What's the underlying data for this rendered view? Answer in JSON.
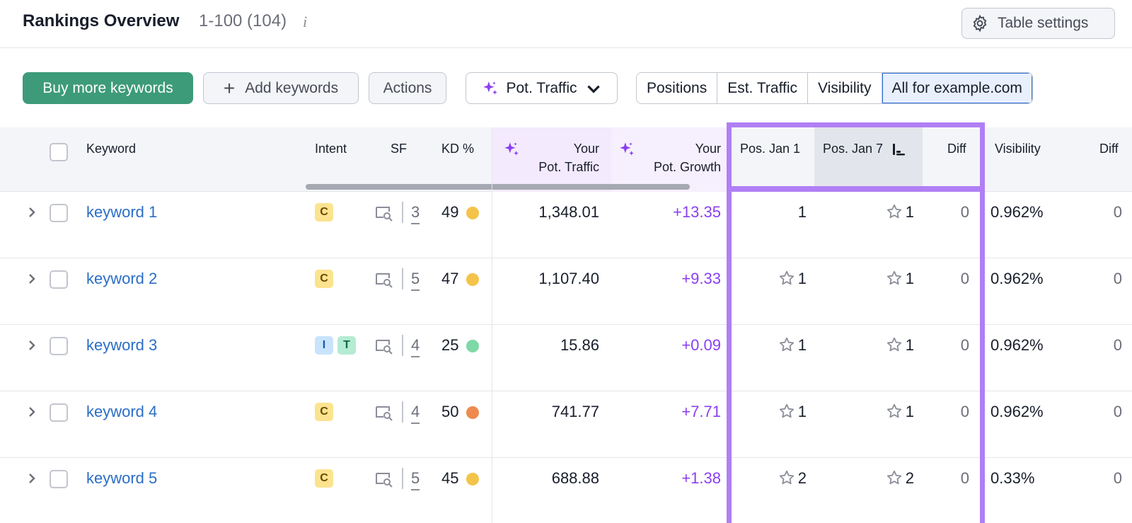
{
  "header": {
    "title": "Rankings Overview",
    "range": "1-100 (104)",
    "info_glyph": "i",
    "table_settings_label": "Table settings"
  },
  "toolbar": {
    "buy_label": "Buy more keywords",
    "add_label": "Add keywords",
    "actions_label": "Actions",
    "pot_traffic_label": "Pot. Traffic",
    "segments": [
      "Positions",
      "Est. Traffic",
      "Visibility",
      "All for example.com"
    ],
    "active_segment": "All for example.com"
  },
  "columns": {
    "keyword": "Keyword",
    "intent": "Intent",
    "sf": "SF",
    "kd": "KD %",
    "pot_traffic_line1": "Your",
    "pot_traffic_line2": "Pot. Traffic",
    "pot_growth_line1": "Your",
    "pot_growth_line2": "Pot. Growth",
    "pos_jan1": "Pos. Jan 1",
    "pos_jan7": "Pos. Jan 7",
    "diff": "Diff",
    "visibility": "Visibility",
    "diff2": "Diff"
  },
  "rows": [
    {
      "keyword": "keyword 1",
      "intents": [
        "C"
      ],
      "sf": "3",
      "kd": "49",
      "kd_color": "#f4c34a",
      "pot_traffic": "1,348.01",
      "pot_growth": "+13.35",
      "pos1": "1",
      "pos1_star": false,
      "pos7": "1",
      "pos7_star": true,
      "diff": "0",
      "visibility": "0.962%",
      "diff2": "0"
    },
    {
      "keyword": "keyword 2",
      "intents": [
        "C"
      ],
      "sf": "5",
      "kd": "47",
      "kd_color": "#f4c34a",
      "pot_traffic": "1,107.40",
      "pot_growth": "+9.33",
      "pos1": "1",
      "pos1_star": true,
      "pos7": "1",
      "pos7_star": true,
      "diff": "0",
      "visibility": "0.962%",
      "diff2": "0"
    },
    {
      "keyword": "keyword 3",
      "intents": [
        "I",
        "T"
      ],
      "sf": "4",
      "kd": "25",
      "kd_color": "#7ed9a6",
      "pot_traffic": "15.86",
      "pot_growth": "+0.09",
      "pos1": "1",
      "pos1_star": true,
      "pos7": "1",
      "pos7_star": true,
      "diff": "0",
      "visibility": "0.962%",
      "diff2": "0"
    },
    {
      "keyword": "keyword 4",
      "intents": [
        "C"
      ],
      "sf": "4",
      "kd": "50",
      "kd_color": "#ee8a4e",
      "pot_traffic": "741.77",
      "pot_growth": "+7.71",
      "pos1": "1",
      "pos1_star": true,
      "pos7": "1",
      "pos7_star": true,
      "diff": "0",
      "visibility": "0.962%",
      "diff2": "0"
    },
    {
      "keyword": "keyword 5",
      "intents": [
        "C"
      ],
      "sf": "5",
      "kd": "45",
      "kd_color": "#f4c34a",
      "pot_traffic": "688.88",
      "pot_growth": "+1.38",
      "pos1": "2",
      "pos1_star": true,
      "pos7": "2",
      "pos7_star": true,
      "diff": "0",
      "visibility": "0.33%",
      "diff2": "0"
    }
  ],
  "colors": {
    "accent_green": "#3d9b7a",
    "link_blue": "#2a6ec7",
    "growth_purple": "#8a3ff0",
    "highlight_purple": "#b07ff5"
  },
  "icons": {
    "settings": "gear-icon",
    "sparkle": "sparkle-icon",
    "sort": "sort-desc-icon",
    "expand": "chevron-right-icon",
    "serp": "serp-features-icon",
    "star": "star-icon"
  }
}
